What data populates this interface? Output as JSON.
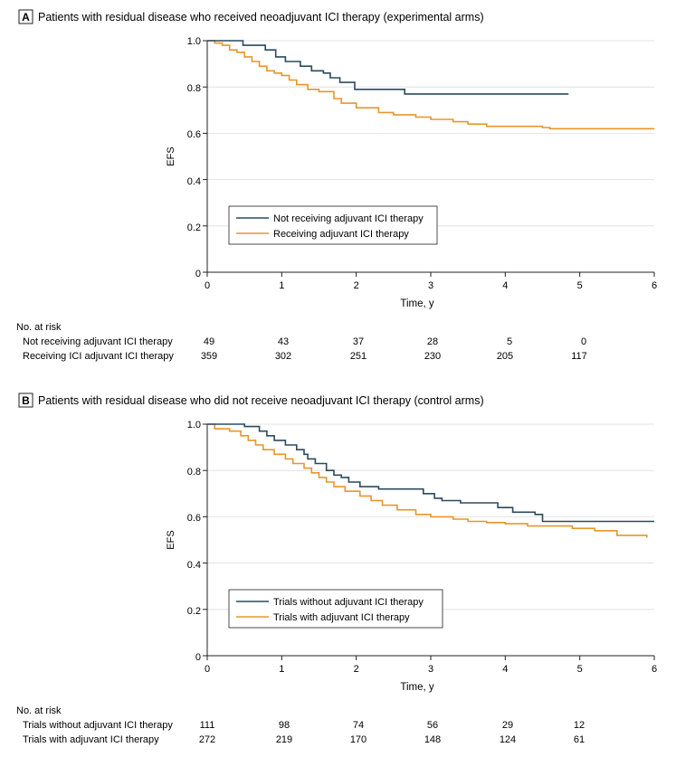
{
  "colors": {
    "navy": "#2b4a5e",
    "orange": "#e8962a",
    "text": "#231f20",
    "axis": "#231f20",
    "grid": "#dedede"
  },
  "chart_data": [
    {
      "type": "line",
      "panel_letter": "A",
      "title": "Patients with residual disease who received neoadjuvant ICI therapy (experimental arms)",
      "xlabel": "Time, y",
      "ylabel": "EFS",
      "xlim": [
        0,
        6
      ],
      "ylim": [
        0,
        1.0
      ],
      "x_ticks": [
        "0",
        "1",
        "2",
        "3",
        "4",
        "5",
        "6"
      ],
      "y_ticks": [
        "0",
        "0.2",
        "0.4",
        "0.6",
        "0.8",
        "1.0"
      ],
      "y_tick_values": [
        0,
        0.2,
        0.4,
        0.6,
        0.8,
        1.0
      ],
      "grid": true,
      "legend_position": "lower-left",
      "series": [
        {
          "name": "Not receiving adjuvant ICI therapy",
          "color": "#2b4a5e",
          "steps": [
            [
              0,
              1.0
            ],
            [
              0.48,
              0.98
            ],
            [
              0.78,
              0.96
            ],
            [
              0.92,
              0.93
            ],
            [
              1.05,
              0.91
            ],
            [
              1.25,
              0.89
            ],
            [
              1.4,
              0.87
            ],
            [
              1.56,
              0.86
            ],
            [
              1.65,
              0.84
            ],
            [
              1.78,
              0.82
            ],
            [
              1.98,
              0.79
            ],
            [
              2.65,
              0.77
            ],
            [
              4.85,
              0.77
            ]
          ]
        },
        {
          "name": "Receiving adjuvant ICI therapy",
          "color": "#e8962a",
          "steps": [
            [
              0,
              1.0
            ],
            [
              0.1,
              0.99
            ],
            [
              0.2,
              0.98
            ],
            [
              0.3,
              0.96
            ],
            [
              0.4,
              0.95
            ],
            [
              0.5,
              0.93
            ],
            [
              0.6,
              0.91
            ],
            [
              0.7,
              0.89
            ],
            [
              0.8,
              0.87
            ],
            [
              0.9,
              0.86
            ],
            [
              1.0,
              0.85
            ],
            [
              1.1,
              0.83
            ],
            [
              1.2,
              0.81
            ],
            [
              1.35,
              0.79
            ],
            [
              1.5,
              0.78
            ],
            [
              1.7,
              0.75
            ],
            [
              1.8,
              0.73
            ],
            [
              2.0,
              0.71
            ],
            [
              2.3,
              0.69
            ],
            [
              2.5,
              0.68
            ],
            [
              2.8,
              0.67
            ],
            [
              3.0,
              0.66
            ],
            [
              3.3,
              0.65
            ],
            [
              3.5,
              0.64
            ],
            [
              3.75,
              0.63
            ],
            [
              4.5,
              0.625
            ],
            [
              4.6,
              0.62
            ],
            [
              6.0,
              0.62
            ]
          ]
        }
      ],
      "risk_table": {
        "header": "No. at risk",
        "rows": [
          {
            "label": "Not receiving adjuvant ICI therapy",
            "counts": [
              "49",
              "43",
              "37",
              "28",
              "5",
              "0"
            ]
          },
          {
            "label": "Receiving ICI adjuvant ICI therapy",
            "counts": [
              "359",
              "302",
              "251",
              "230",
              "205",
              "117"
            ]
          }
        ]
      }
    },
    {
      "type": "line",
      "panel_letter": "B",
      "title": "Patients with residual disease who did not receive neoadjuvant ICI therapy (control arms)",
      "xlabel": "Time, y",
      "ylabel": "EFS",
      "xlim": [
        0,
        6
      ],
      "ylim": [
        0,
        1.0
      ],
      "x_ticks": [
        "0",
        "1",
        "2",
        "3",
        "4",
        "5",
        "6"
      ],
      "y_ticks": [
        "0",
        "0.2",
        "0.4",
        "0.6",
        "0.8",
        "1.0"
      ],
      "y_tick_values": [
        0,
        0.2,
        0.4,
        0.6,
        0.8,
        1.0
      ],
      "grid": true,
      "legend_position": "lower-left",
      "series": [
        {
          "name": "Trials without adjuvant ICI therapy",
          "color": "#2b4a5e",
          "steps": [
            [
              0,
              1.0
            ],
            [
              0.5,
              0.99
            ],
            [
              0.7,
              0.97
            ],
            [
              0.8,
              0.95
            ],
            [
              0.9,
              0.93
            ],
            [
              1.05,
              0.91
            ],
            [
              1.2,
              0.89
            ],
            [
              1.3,
              0.87
            ],
            [
              1.35,
              0.85
            ],
            [
              1.45,
              0.83
            ],
            [
              1.6,
              0.8
            ],
            [
              1.7,
              0.78
            ],
            [
              1.8,
              0.77
            ],
            [
              1.9,
              0.75
            ],
            [
              2.05,
              0.73
            ],
            [
              2.3,
              0.72
            ],
            [
              2.9,
              0.7
            ],
            [
              3.05,
              0.68
            ],
            [
              3.15,
              0.67
            ],
            [
              3.4,
              0.66
            ],
            [
              3.9,
              0.64
            ],
            [
              4.1,
              0.62
            ],
            [
              4.4,
              0.61
            ],
            [
              4.5,
              0.58
            ],
            [
              6.0,
              0.58
            ]
          ]
        },
        {
          "name": "Trials with adjuvant ICI therapy",
          "color": "#e8962a",
          "steps": [
            [
              0,
              1.0
            ],
            [
              0.1,
              0.98
            ],
            [
              0.3,
              0.97
            ],
            [
              0.45,
              0.95
            ],
            [
              0.55,
              0.93
            ],
            [
              0.65,
              0.91
            ],
            [
              0.75,
              0.89
            ],
            [
              0.9,
              0.87
            ],
            [
              1.05,
              0.85
            ],
            [
              1.15,
              0.83
            ],
            [
              1.3,
              0.81
            ],
            [
              1.4,
              0.79
            ],
            [
              1.5,
              0.77
            ],
            [
              1.6,
              0.75
            ],
            [
              1.7,
              0.73
            ],
            [
              1.85,
              0.71
            ],
            [
              2.05,
              0.69
            ],
            [
              2.2,
              0.67
            ],
            [
              2.35,
              0.65
            ],
            [
              2.55,
              0.63
            ],
            [
              2.8,
              0.61
            ],
            [
              3.0,
              0.6
            ],
            [
              3.3,
              0.59
            ],
            [
              3.5,
              0.58
            ],
            [
              3.75,
              0.575
            ],
            [
              4.0,
              0.57
            ],
            [
              4.3,
              0.56
            ],
            [
              4.9,
              0.55
            ],
            [
              5.2,
              0.54
            ],
            [
              5.5,
              0.52
            ],
            [
              5.9,
              0.51
            ]
          ]
        }
      ],
      "risk_table": {
        "header": "No. at risk",
        "rows": [
          {
            "label": "Trials without adjuvant ICI therapy",
            "counts": [
              "111",
              "98",
              "74",
              "56",
              "29",
              "12"
            ]
          },
          {
            "label": "Trials with adjuvant ICI therapy",
            "counts": [
              "272",
              "219",
              "170",
              "148",
              "124",
              "61"
            ]
          }
        ]
      }
    }
  ]
}
